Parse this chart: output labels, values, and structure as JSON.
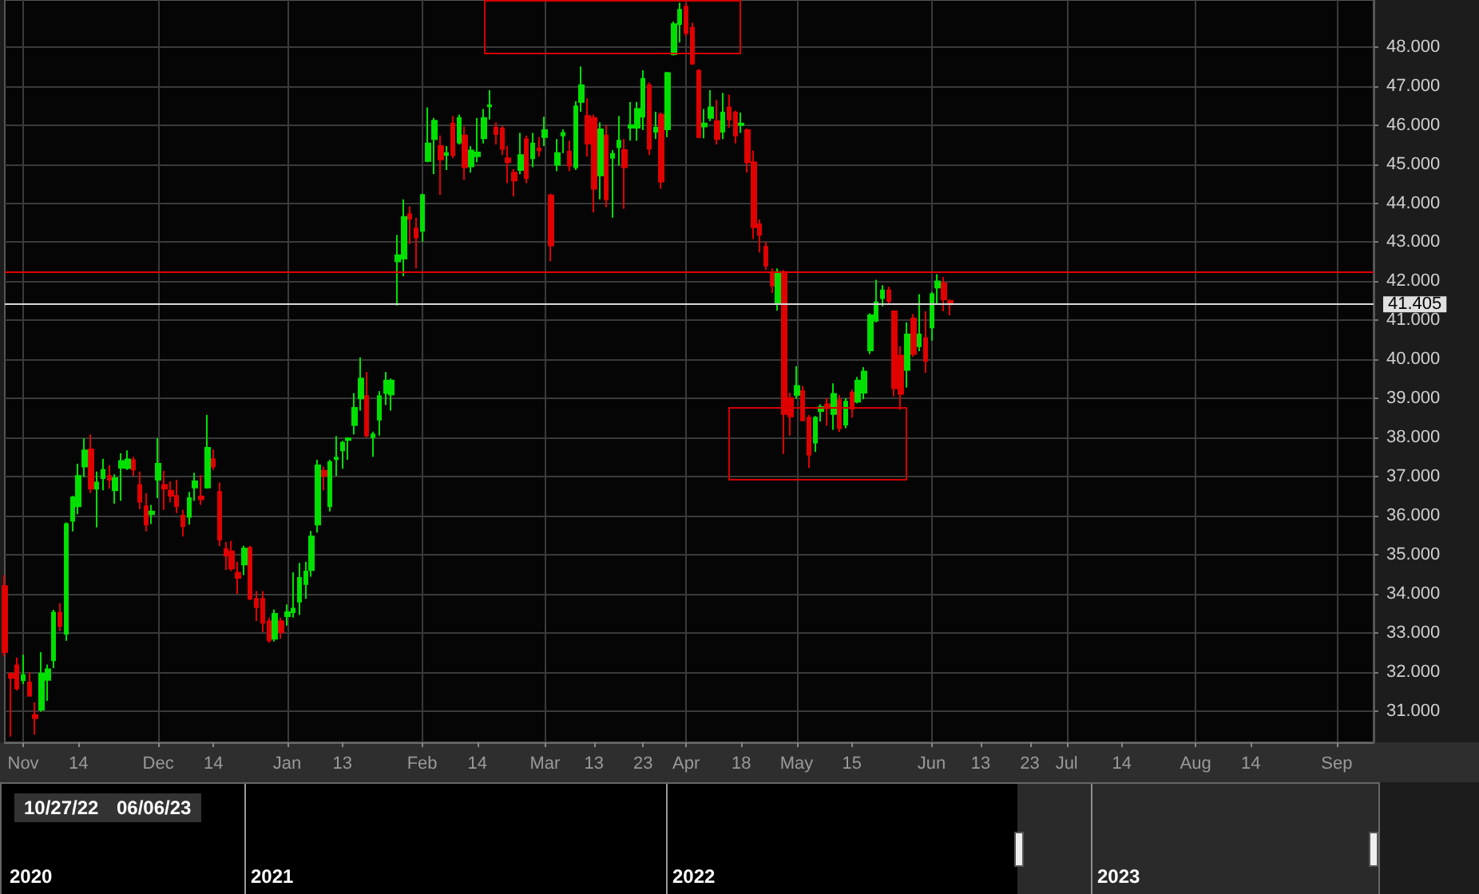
{
  "chart_data": {
    "type": "candlestick",
    "categories": [
      null,
      null,
      null,
      "Nov",
      null,
      null,
      null,
      null,
      null,
      null,
      null,
      null,
      "14",
      null,
      null,
      null,
      null,
      null,
      null,
      null,
      null,
      null,
      null,
      null,
      null,
      "Dec",
      null,
      null,
      null,
      null,
      null,
      null,
      null,
      null,
      "14",
      null,
      null,
      null,
      null,
      null,
      null,
      null,
      null,
      null,
      null,
      null,
      "Jan",
      null,
      null,
      null,
      null,
      null,
      null,
      null,
      null,
      "13",
      null,
      null,
      null,
      null,
      null,
      null,
      null,
      null,
      null,
      null,
      null,
      null,
      "Feb",
      null,
      null,
      null,
      null,
      null,
      null,
      null,
      null,
      "14",
      null,
      null,
      null,
      null,
      null,
      null,
      null,
      null,
      null,
      null,
      "Mar",
      null,
      null,
      null,
      null,
      null,
      null,
      null,
      "13",
      null,
      null,
      null,
      null,
      null,
      null,
      null,
      "23",
      null,
      null,
      null,
      null,
      null,
      null,
      "Apr",
      null,
      null,
      null,
      null,
      null,
      null,
      null,
      null,
      "18",
      null,
      null,
      null,
      null,
      null,
      null,
      null,
      null,
      "May",
      null,
      null,
      null,
      null,
      null,
      null,
      null,
      null,
      "15",
      null,
      null,
      null,
      null,
      null,
      null,
      null,
      null,
      null,
      null,
      null,
      null,
      "Jun",
      null,
      null,
      null,
      null,
      null,
      null,
      null,
      "13",
      null,
      null,
      null,
      null,
      null,
      null,
      null,
      "23",
      null,
      null,
      null,
      null,
      null,
      "Jul",
      null,
      null,
      null,
      null,
      null,
      null,
      null,
      null,
      "14",
      null,
      null,
      null,
      null,
      null,
      null,
      null,
      null,
      null,
      null,
      null,
      "Aug",
      null,
      null,
      null,
      null,
      null,
      null,
      null,
      null,
      "14",
      null,
      null,
      null,
      null,
      null,
      null,
      null,
      null,
      null,
      null,
      null,
      null,
      null,
      "Sep",
      null,
      null,
      null,
      null,
      null,
      null
    ],
    "ohlc": [
      [
        34.2,
        34.48,
        32.4,
        32.51
      ],
      [
        31.95,
        32.0,
        30.35,
        31.85
      ],
      [
        32.17,
        32.37,
        31.53,
        31.58
      ],
      [
        31.79,
        32.44,
        31.69,
        31.92
      ],
      [
        31.73,
        31.99,
        31.39,
        31.39
      ],
      [
        30.9,
        31.22,
        30.4,
        30.82
      ],
      [
        31.04,
        32.51,
        30.98,
        31.96
      ],
      [
        31.8,
        32.19,
        31.26,
        32.07
      ],
      [
        32.3,
        33.59,
        32.1,
        33.52
      ],
      [
        33.52,
        33.76,
        33.05,
        33.18
      ],
      [
        32.98,
        35.83,
        32.8,
        35.79
      ],
      [
        35.87,
        36.51,
        35.6,
        36.47
      ],
      [
        36.24,
        37.33,
        36.04,
        37.02
      ],
      [
        37.26,
        37.98,
        36.99,
        37.67
      ],
      [
        37.7,
        38.08,
        36.58,
        36.69
      ],
      [
        36.69,
        37.13,
        35.7,
        36.85
      ],
      [
        36.96,
        37.46,
        36.65,
        37.17
      ],
      [
        37.02,
        37.29,
        36.69,
        36.92
      ],
      [
        36.65,
        37.06,
        36.31,
        36.96
      ],
      [
        37.23,
        37.6,
        36.38,
        37.4
      ],
      [
        37.22,
        37.67,
        37.17,
        37.44
      ],
      [
        37.42,
        37.51,
        37.02,
        37.18
      ],
      [
        36.79,
        37.13,
        36.17,
        36.36
      ],
      [
        36.24,
        36.58,
        35.6,
        35.77
      ],
      [
        36.04,
        36.28,
        35.79,
        36.11
      ],
      [
        36.92,
        37.99,
        36.45,
        37.33
      ],
      [
        36.79,
        37.15,
        36.15,
        36.69
      ],
      [
        36.64,
        36.88,
        36.34,
        36.51
      ],
      [
        36.51,
        36.92,
        36.07,
        36.24
      ],
      [
        36.0,
        36.15,
        35.47,
        35.73
      ],
      [
        35.97,
        36.61,
        35.77,
        36.45
      ],
      [
        36.72,
        37.1,
        36.38,
        36.88
      ],
      [
        36.49,
        37.04,
        36.28,
        36.42
      ],
      [
        36.72,
        38.58,
        36.69,
        37.74
      ],
      [
        37.45,
        37.7,
        37.17,
        37.26
      ],
      [
        36.61,
        36.85,
        35.22,
        35.39
      ],
      [
        35.15,
        35.33,
        34.61,
        34.98
      ],
      [
        35.09,
        35.36,
        34.58,
        34.65
      ],
      [
        34.54,
        34.82,
        34.0,
        34.41
      ],
      [
        34.75,
        35.23,
        34.48,
        35.16
      ],
      [
        35.18,
        35.23,
        33.84,
        33.87
      ],
      [
        33.87,
        34.07,
        33.3,
        33.66
      ],
      [
        33.87,
        34.07,
        33.02,
        33.26
      ],
      [
        33.3,
        33.39,
        32.75,
        32.81
      ],
      [
        32.85,
        33.6,
        32.78,
        33.49
      ],
      [
        33.3,
        33.39,
        32.85,
        33.02
      ],
      [
        33.43,
        33.73,
        33.19,
        33.53
      ],
      [
        33.53,
        34.55,
        33.39,
        33.62
      ],
      [
        33.8,
        34.79,
        33.46,
        34.41
      ],
      [
        34.25,
        34.82,
        33.87,
        34.57
      ],
      [
        34.61,
        35.61,
        34.44,
        35.47
      ],
      [
        35.77,
        37.43,
        35.57,
        37.29
      ],
      [
        37.15,
        37.26,
        36.65,
        37.02
      ],
      [
        36.24,
        37.43,
        36.11,
        37.37
      ],
      [
        37.45,
        38.04,
        37.02,
        37.49
      ],
      [
        37.67,
        37.92,
        37.2,
        37.87
      ],
      [
        37.94,
        38.01,
        37.43,
        37.98
      ],
      [
        38.32,
        39.14,
        38.08,
        38.76
      ],
      [
        39.0,
        40.05,
        38.69,
        39.51
      ],
      [
        39.06,
        39.68,
        38.01,
        38.05
      ],
      [
        38.01,
        38.15,
        37.51,
        38.08
      ],
      [
        38.46,
        39.19,
        38.05,
        39.06
      ],
      [
        39.14,
        39.68,
        38.83,
        39.46
      ],
      [
        39.1,
        39.51,
        38.69,
        39.46
      ],
      [
        42.51,
        43.19,
        41.38,
        42.67
      ],
      [
        42.58,
        44.1,
        42.13,
        43.65
      ],
      [
        43.72,
        43.92,
        42.95,
        43.6
      ],
      [
        43.35,
        43.63,
        42.33,
        43.12
      ],
      [
        43.29,
        44.24,
        43.01,
        44.21
      ],
      [
        45.08,
        46.45,
        45.05,
        45.53
      ],
      [
        45.64,
        46.18,
        44.74,
        46.11
      ],
      [
        45.46,
        45.73,
        44.21,
        45.12
      ],
      [
        45.23,
        45.46,
        44.85,
        45.28
      ],
      [
        46.04,
        46.23,
        45.15,
        45.23
      ],
      [
        45.55,
        46.27,
        45.5,
        46.18
      ],
      [
        45.73,
        45.96,
        44.6,
        44.92
      ],
      [
        44.94,
        45.46,
        44.78,
        45.35
      ],
      [
        45.2,
        46.18,
        45.05,
        45.3
      ],
      [
        45.66,
        46.41,
        45.53,
        46.18
      ],
      [
        46.48,
        46.89,
        46.14,
        46.51
      ],
      [
        45.93,
        46.07,
        45.5,
        45.77
      ],
      [
        45.91,
        45.98,
        45.23,
        45.39
      ],
      [
        45.15,
        45.46,
        44.51,
        45.05
      ],
      [
        44.78,
        44.87,
        44.17,
        44.58
      ],
      [
        44.85,
        45.8,
        44.74,
        45.23
      ],
      [
        45.64,
        45.73,
        44.51,
        44.64
      ],
      [
        45.15,
        45.8,
        44.92,
        45.53
      ],
      [
        45.4,
        45.69,
        45.19,
        45.35
      ],
      [
        45.69,
        46.21,
        45.46,
        45.87
      ],
      [
        44.2,
        44.24,
        42.51,
        42.92
      ],
      [
        44.98,
        45.64,
        44.82,
        45.28
      ],
      [
        45.73,
        45.89,
        45.28,
        45.8
      ],
      [
        45.32,
        45.6,
        44.82,
        44.96
      ],
      [
        44.92,
        46.61,
        44.85,
        46.48
      ],
      [
        46.59,
        47.5,
        46.34,
        47.02
      ],
      [
        46.23,
        46.68,
        45.19,
        45.53
      ],
      [
        46.18,
        46.27,
        43.76,
        44.37
      ],
      [
        44.71,
        46.07,
        44.1,
        45.89
      ],
      [
        45.73,
        46.0,
        43.9,
        44.1
      ],
      [
        45.16,
        45.36,
        43.63,
        45.26
      ],
      [
        45.43,
        46.23,
        44.96,
        45.6
      ],
      [
        45.36,
        45.64,
        43.86,
        44.92
      ],
      [
        45.93,
        46.59,
        45.6,
        46.0
      ],
      [
        45.93,
        46.59,
        45.6,
        46.41
      ],
      [
        46.21,
        47.4,
        45.87,
        47.18
      ],
      [
        47.02,
        47.09,
        45.23,
        45.39
      ],
      [
        45.83,
        46.34,
        45.64,
        45.93
      ],
      [
        46.27,
        46.32,
        44.37,
        44.55
      ],
      [
        45.89,
        47.36,
        45.69,
        47.33
      ],
      [
        47.81,
        48.65,
        47.78,
        48.58
      ],
      [
        48.58,
        49.13,
        48.11,
        48.95
      ],
      [
        49.03,
        49.13,
        48.27,
        48.35
      ],
      [
        48.49,
        48.62,
        47.54,
        47.57
      ],
      [
        47.39,
        47.43,
        45.66,
        45.69
      ],
      [
        45.96,
        46.41,
        45.66,
        46.04
      ],
      [
        46.18,
        46.89,
        46.1,
        46.45
      ],
      [
        46.1,
        46.64,
        45.5,
        45.64
      ],
      [
        45.83,
        46.82,
        45.64,
        46.32
      ],
      [
        46.45,
        46.78,
        45.93,
        46.14
      ],
      [
        46.32,
        46.37,
        45.53,
        45.73
      ],
      [
        46.0,
        46.32,
        45.8,
        46.04
      ],
      [
        45.87,
        45.91,
        44.78,
        45.05
      ],
      [
        45.05,
        45.35,
        43.08,
        43.38
      ],
      [
        43.46,
        43.58,
        42.74,
        43.19
      ],
      [
        42.88,
        43.01,
        42.29,
        42.4
      ],
      [
        42.2,
        42.33,
        41.7,
        41.89
      ],
      [
        41.45,
        42.33,
        41.25,
        42.24
      ],
      [
        42.24,
        42.29,
        37.58,
        38.6
      ],
      [
        39.01,
        39.15,
        38.05,
        38.54
      ],
      [
        39.09,
        39.83,
        38.99,
        39.32
      ],
      [
        39.19,
        39.32,
        38.44,
        38.44
      ],
      [
        38.51,
        38.58,
        37.22,
        37.56
      ],
      [
        37.87,
        38.55,
        37.63,
        38.51
      ],
      [
        38.68,
        38.85,
        38.41,
        38.78
      ],
      [
        38.85,
        39.01,
        38.3,
        38.75
      ],
      [
        38.6,
        39.39,
        38.2,
        39.12
      ],
      [
        38.96,
        39.09,
        38.14,
        38.24
      ],
      [
        38.33,
        39.01,
        38.24,
        38.92
      ],
      [
        39.15,
        39.23,
        38.51,
        38.74
      ],
      [
        38.92,
        39.55,
        38.88,
        39.46
      ],
      [
        39.15,
        39.8,
        38.98,
        39.69
      ],
      [
        40.23,
        41.18,
        40.14,
        41.13
      ],
      [
        40.99,
        42.04,
        40.95,
        41.46
      ],
      [
        41.57,
        41.9,
        41.36,
        41.77
      ],
      [
        41.77,
        41.86,
        41.4,
        41.5
      ],
      [
        41.23,
        41.23,
        39.05,
        39.26
      ],
      [
        40.1,
        40.34,
        38.71,
        39.12
      ],
      [
        39.73,
        40.95,
        39.28,
        40.64
      ],
      [
        41.05,
        41.16,
        40.07,
        40.14
      ],
      [
        40.34,
        41.67,
        40.21,
        40.64
      ],
      [
        40.55,
        41.23,
        39.66,
        39.96
      ],
      [
        40.82,
        41.73,
        40.48,
        41.67
      ],
      [
        41.84,
        42.18,
        41.4,
        42.0
      ],
      [
        41.95,
        42.11,
        41.23,
        41.54
      ],
      [
        41.5,
        41.54,
        41.13,
        41.41
      ],
      null,
      null,
      null,
      null,
      null,
      null,
      null,
      null,
      null,
      null,
      null,
      null,
      null,
      null,
      null,
      null,
      null,
      null,
      null,
      null,
      null,
      null,
      null,
      null,
      null,
      null,
      null,
      null,
      null,
      null,
      null,
      null,
      null,
      null,
      null,
      null,
      null,
      null,
      null,
      null,
      null,
      null,
      null,
      null,
      null,
      null,
      null,
      null,
      null,
      null,
      null,
      null,
      null,
      null,
      null,
      null,
      null,
      null,
      null,
      null,
      null,
      null,
      null,
      null,
      null,
      null,
      null,
      null,
      null
    ],
    "ylim": [
      30.2,
      49.2
    ],
    "yticks": [
      {
        "value": 31,
        "label": "31.000"
      },
      {
        "value": 32,
        "label": "32.000"
      },
      {
        "value": 33,
        "label": "33.000"
      },
      {
        "value": 34,
        "label": "34.000"
      },
      {
        "value": 35,
        "label": "35.000"
      },
      {
        "value": 36,
        "label": "36.000"
      },
      {
        "value": 37,
        "label": "37.000"
      },
      {
        "value": 38,
        "label": "38.000"
      },
      {
        "value": 39,
        "label": "39.000"
      },
      {
        "value": 40,
        "label": "40.000"
      },
      {
        "value": 41,
        "label": "41.000"
      },
      {
        "value": 42,
        "label": "42.000"
      },
      {
        "value": 43,
        "label": "43.000"
      },
      {
        "value": 44,
        "label": "44.000"
      },
      {
        "value": 45,
        "label": "45.000"
      },
      {
        "value": 46,
        "label": "46.000"
      },
      {
        "value": 47,
        "label": "47.000"
      },
      {
        "value": 48,
        "label": "48.000"
      }
    ],
    "grid": true,
    "ref_lines": [
      {
        "axis": "y",
        "value": 42.25,
        "color": "#e00000"
      },
      {
        "axis": "y",
        "value": 41.405,
        "label": "41.405",
        "color": "#d8d8d8"
      }
    ],
    "annotations": [
      "10/27/22",
      "06/06/23",
      "2020",
      "2021",
      "2022",
      "2023"
    ]
  }
}
